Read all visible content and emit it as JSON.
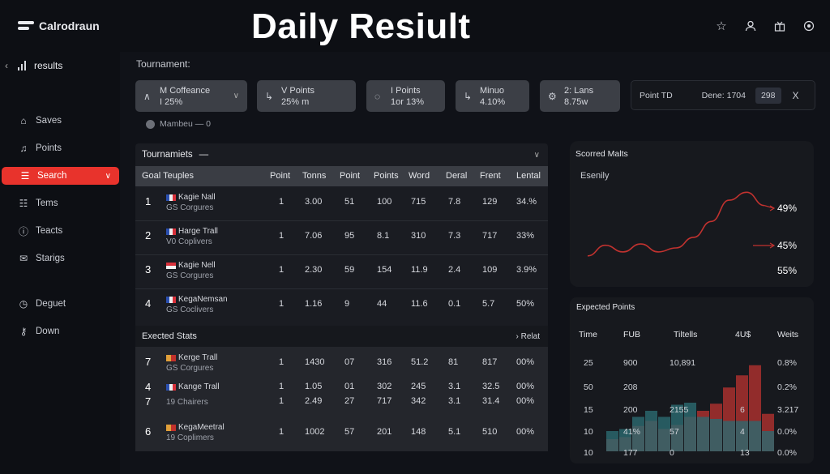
{
  "app": {
    "name": "Calrodraun",
    "headline": "Daily Resiult"
  },
  "top_icons": [
    "star-icon",
    "user-icon",
    "gift-icon",
    "settings-icon"
  ],
  "sidebar": {
    "header": "results",
    "items": [
      {
        "label": "Saves",
        "icon": "home-icon"
      },
      {
        "label": "Points",
        "icon": "music-icon"
      },
      {
        "label": "Search",
        "icon": "menu-icon",
        "active": true
      },
      {
        "label": "Tems",
        "icon": "list-icon"
      },
      {
        "label": "Teacts",
        "icon": "info-icon"
      },
      {
        "label": "Starigs",
        "icon": "mail-icon"
      },
      {
        "label": "Deguet",
        "icon": "clock-icon"
      },
      {
        "label": "Down",
        "icon": "key-icon"
      }
    ]
  },
  "main": {
    "title": "Tournament:",
    "chips": [
      {
        "line1": "M Coffeance",
        "line2": "I 25%",
        "icon": "bolt-icon"
      },
      {
        "line1": "V Points",
        "line2": "25% m",
        "icon": "phone-icon"
      },
      {
        "line1": "I Points",
        "line2": "1or 13%",
        "icon": "chat-icon"
      },
      {
        "line1": "Minuo",
        "line2": "4.10%",
        "icon": "phone-icon"
      },
      {
        "line1": "2: Lans",
        "line2": "8.75w",
        "icon": "gear-icon"
      }
    ],
    "filter": {
      "label": "Point TD",
      "value": "Dene: 1704",
      "number": "298",
      "close": "X"
    },
    "member": "Mambeu — 0"
  },
  "table": {
    "title": "Tournamiets",
    "title_suffix": "—",
    "columns": [
      "Goal Teuples",
      "Point",
      "Tonns",
      "Point",
      "Points",
      "Word",
      "Deral",
      "Frent",
      "Lental"
    ],
    "rows": [
      {
        "rank": "1",
        "name": "Kagie Nall",
        "sub": "GS Corgures",
        "vals": [
          "1",
          "3.00",
          "51",
          "100",
          "715",
          "7.8",
          "129",
          "34.%"
        ]
      },
      {
        "rank": "2",
        "name": "Harge Trall",
        "sub": "V0 Coplivers",
        "vals": [
          "1",
          "7.06",
          "95",
          "8.1",
          "310",
          "7.3",
          "717",
          "33%"
        ]
      },
      {
        "rank": "3",
        "name": "Kagie Nell",
        "sub": "GS Corgures",
        "vals": [
          "1",
          "2.30",
          "59",
          "154",
          "11.9",
          "2.4",
          "109",
          "3.9%"
        ]
      },
      {
        "rank": "4",
        "name": "KegaNemsan",
        "sub": "GS Coclivers",
        "vals": [
          "1",
          "1.16",
          "9",
          "44",
          "11.6",
          "0.1",
          "5.7",
          "50%"
        ]
      }
    ],
    "section_title": "Exected Stats",
    "section_link": "Relat",
    "section_rows": [
      {
        "rank": "7",
        "name": "Kerge Trall",
        "sub": "GS Corgures",
        "vals": [
          "1",
          "1430",
          "07",
          "316",
          "51.2",
          "81",
          "817",
          "00%"
        ]
      },
      {
        "rank": "4",
        "name": "Kange Trall",
        "sub": "",
        "vals": [
          "1",
          "1.05",
          "01",
          "302",
          "245",
          "3.1",
          "32.5",
          "00%"
        ]
      },
      {
        "rank": "7",
        "name": "",
        "sub": "19 Chairers",
        "vals": [
          "1",
          "2.49",
          "27",
          "717",
          "342",
          "3.1",
          "31.4",
          "00%"
        ]
      },
      {
        "rank": "6",
        "name": "KegaMeetral",
        "sub": "19 Coplimers",
        "vals": [
          "1",
          "1002",
          "57",
          "201",
          "148",
          "5.1",
          "510",
          "00%"
        ]
      }
    ]
  },
  "scored": {
    "title": "Scorred Malts",
    "subtitle": "Esenily",
    "labels": [
      "49%",
      "45%",
      "55%"
    ],
    "chart_data": {
      "type": "line",
      "title": "Scorred Malts",
      "x": [
        0,
        1,
        2,
        3,
        4,
        5,
        6,
        7,
        8,
        9,
        10
      ],
      "series": [
        {
          "name": "Esenily",
          "values": [
            30,
            38,
            33,
            39,
            33,
            36,
            44,
            56,
            72,
            78,
            68
          ]
        }
      ],
      "annotations": [
        "49%",
        "45%",
        "55%"
      ]
    }
  },
  "expected": {
    "title": "Expected Points",
    "headers": [
      "Time",
      "FUB",
      "Tiltells",
      "4U$",
      "Weits"
    ],
    "rows": [
      [
        "25",
        "900",
        "10,891",
        "",
        "0.8%"
      ],
      [
        "50",
        "208",
        "",
        "",
        "0.2%"
      ],
      [
        "15",
        "200",
        "2155",
        "6",
        "3.217"
      ],
      [
        "10",
        "41%",
        "57",
        "4",
        "0.0%"
      ],
      [
        "10",
        "177",
        "0",
        "13",
        "0.0%"
      ]
    ],
    "chart_data": {
      "type": "bar",
      "title": "Expected Points",
      "categories": [
        "1",
        "2",
        "3",
        "4",
        "5",
        "6",
        "7",
        "8",
        "9",
        "10",
        "11",
        "12",
        "13"
      ],
      "series": [
        {
          "name": "red",
          "values": [
            12,
            14,
            25,
            30,
            22,
            26,
            34,
            40,
            47,
            63,
            75,
            85,
            37
          ]
        },
        {
          "name": "teal",
          "values": [
            20,
            22,
            34,
            40,
            34,
            46,
            48,
            34,
            32,
            30,
            30,
            30,
            20
          ]
        }
      ],
      "colors": {
        "red": "#a8302e",
        "teal": "#2c6a70"
      }
    }
  },
  "colors": {
    "accent": "#e8332c",
    "panel": "#1a1c22",
    "header": "#3a3d44"
  }
}
